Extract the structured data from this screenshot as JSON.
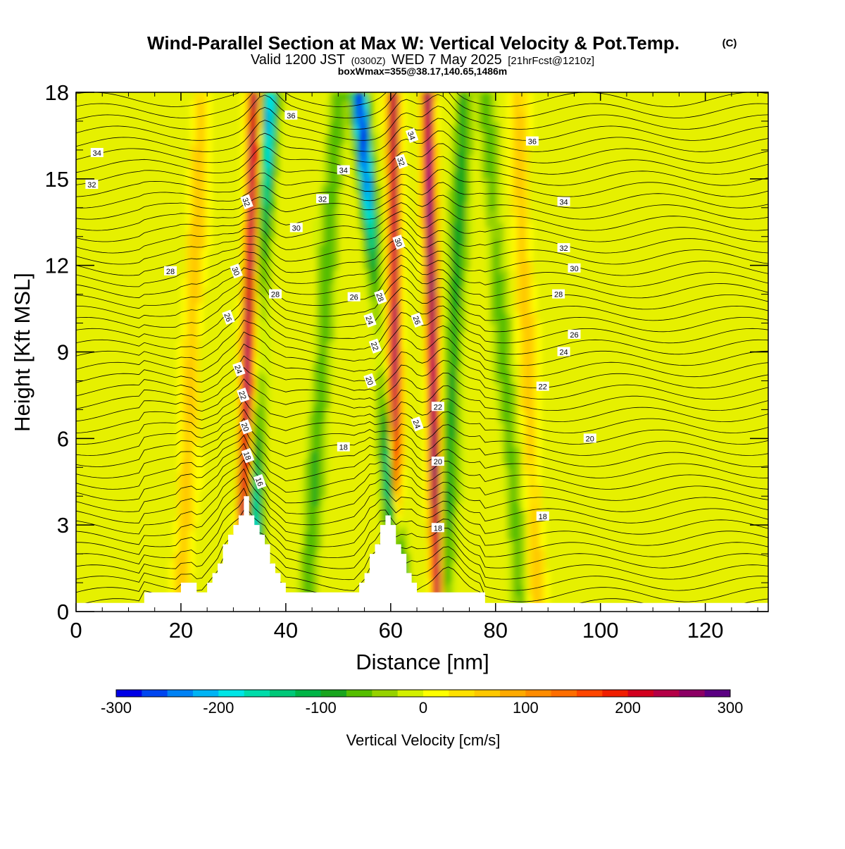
{
  "header": {
    "title": "Wind-Parallel Section at Max W: Vertical Velocity & Pot.Temp.",
    "copyright": "(C)",
    "valid_prefix": "Valid 1200 JST",
    "valid_utc": "(0300Z)",
    "valid_date": "WED 7 May 2025",
    "forecast": "[21hrFcst@1210z]",
    "box_info": "boxWmax=355@38.17,140.65,1486m"
  },
  "chart_data": {
    "type": "heatmap",
    "xlabel": "Distance [nm]",
    "ylabel": "Height [Kft MSL]",
    "xlim": [
      0,
      132
    ],
    "ylim": [
      0,
      18
    ],
    "x_ticks": [
      "0",
      "20",
      "40",
      "60",
      "80",
      "100",
      "120"
    ],
    "y_ticks": [
      "0",
      "3",
      "6",
      "9",
      "12",
      "15",
      "18"
    ],
    "colorbar": {
      "label": "Vertical Velocity [cm/s]",
      "range": [
        -300,
        300
      ],
      "step": 25,
      "tick_labels": [
        "-300",
        "-200",
        "-100",
        "0",
        "100",
        "200",
        "300"
      ],
      "colors": [
        "#0000e6",
        "#0046f0",
        "#0082f5",
        "#00b4f5",
        "#00e6e6",
        "#00dcaa",
        "#00c878",
        "#00b446",
        "#19a51e",
        "#55be00",
        "#96d200",
        "#d2f000",
        "#ffff00",
        "#ffe100",
        "#ffc800",
        "#ffaa00",
        "#ff8c00",
        "#ff6e00",
        "#ff4600",
        "#f01e00",
        "#d2001e",
        "#b40046",
        "#8c0064",
        "#5a0082"
      ]
    },
    "terrain_peaks_nm": [
      32,
      59
    ],
    "terrain_max_kft": 3.9,
    "updraft_bands": [
      {
        "x_bottom_nm": 31.5,
        "x_top_nm": 34,
        "peak_cm_s": 250
      },
      {
        "x_bottom_nm": 61,
        "x_top_nm": 60.5,
        "peak_cm_s": 250
      },
      {
        "x_bottom_nm": 69,
        "x_top_nm": 67,
        "peak_cm_s": 280
      }
    ],
    "downdraft_bands": [
      {
        "x_bottom_nm": 33.5,
        "x_top_nm": 37,
        "peak_cm_s": -200
      },
      {
        "x_bottom_nm": 62,
        "x_top_nm": 54,
        "peak_cm_s": -300
      }
    ],
    "theta_contours": {
      "interval_c": 2,
      "labeled_values": [
        "16",
        "18",
        "20",
        "22",
        "24",
        "26",
        "28",
        "30",
        "32",
        "34",
        "36"
      ]
    },
    "contour_labels": [
      {
        "text": "34",
        "x": 4,
        "y": 15.9
      },
      {
        "text": "32",
        "x": 3,
        "y": 14.8
      },
      {
        "text": "28",
        "x": 18,
        "y": 11.8
      },
      {
        "text": "36",
        "x": 41,
        "y": 17.2
      },
      {
        "text": "34",
        "x": 51,
        "y": 15.3
      },
      {
        "text": "32",
        "x": 47,
        "y": 14.3
      },
      {
        "text": "30",
        "x": 42,
        "y": 13.3
      },
      {
        "text": "32",
        "x": 32.5,
        "y": 14.2
      },
      {
        "text": "30",
        "x": 30.5,
        "y": 11.8
      },
      {
        "text": "28",
        "x": 38,
        "y": 11.0
      },
      {
        "text": "26",
        "x": 29,
        "y": 10.2
      },
      {
        "text": "24",
        "x": 31,
        "y": 8.4
      },
      {
        "text": "22",
        "x": 31.8,
        "y": 7.5
      },
      {
        "text": "20",
        "x": 32.3,
        "y": 6.4
      },
      {
        "text": "18",
        "x": 32.7,
        "y": 5.4
      },
      {
        "text": "16",
        "x": 35,
        "y": 4.5
      },
      {
        "text": "26",
        "x": 53,
        "y": 10.9
      },
      {
        "text": "28",
        "x": 58,
        "y": 10.9
      },
      {
        "text": "24",
        "x": 56,
        "y": 10.1
      },
      {
        "text": "22",
        "x": 57,
        "y": 9.2
      },
      {
        "text": "20",
        "x": 56,
        "y": 8.0
      },
      {
        "text": "18",
        "x": 51,
        "y": 5.7
      },
      {
        "text": "34",
        "x": 64,
        "y": 16.5
      },
      {
        "text": "32",
        "x": 62,
        "y": 15.6
      },
      {
        "text": "30",
        "x": 61.5,
        "y": 12.8
      },
      {
        "text": "26",
        "x": 65,
        "y": 10.1
      },
      {
        "text": "24",
        "x": 65,
        "y": 6.5
      },
      {
        "text": "22",
        "x": 69,
        "y": 7.1
      },
      {
        "text": "20",
        "x": 69,
        "y": 5.2
      },
      {
        "text": "18",
        "x": 69,
        "y": 2.9
      },
      {
        "text": "36",
        "x": 87,
        "y": 16.3
      },
      {
        "text": "34",
        "x": 93,
        "y": 14.2
      },
      {
        "text": "32",
        "x": 93,
        "y": 12.6
      },
      {
        "text": "30",
        "x": 95,
        "y": 11.9
      },
      {
        "text": "28",
        "x": 92,
        "y": 11.0
      },
      {
        "text": "26",
        "x": 95,
        "y": 9.6
      },
      {
        "text": "24",
        "x": 93,
        "y": 9.0
      },
      {
        "text": "22",
        "x": 89,
        "y": 7.8
      },
      {
        "text": "20",
        "x": 98,
        "y": 6.0
      },
      {
        "text": "18",
        "x": 89,
        "y": 3.3
      }
    ]
  }
}
